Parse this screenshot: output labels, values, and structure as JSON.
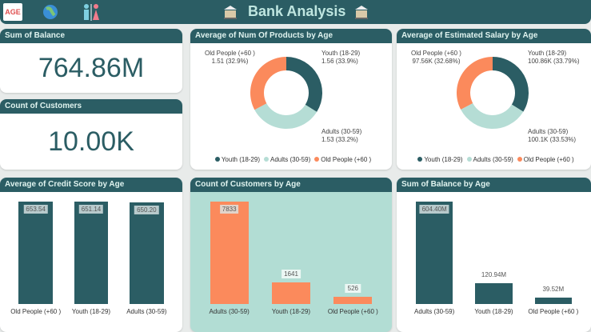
{
  "header": {
    "title": "Bank Analysis",
    "age_logo_text": "AGE"
  },
  "colors": {
    "youth": "#2b5d64",
    "adults": "#b5ddd5",
    "old": "#fb8a5c",
    "header": "#2b5d64"
  },
  "kpis": [
    {
      "title": "Sum of Balance",
      "value": "764.86M"
    },
    {
      "title": "Count of Customers",
      "value": "10.00K"
    }
  ],
  "chart_data": [
    {
      "type": "pie",
      "title": "Average of Num Of Products by Age",
      "categories": [
        "Youth (18-29)",
        "Adults (30-59)",
        "Old People (+60 )"
      ],
      "values": [
        1.56,
        1.53,
        1.51
      ],
      "percents": [
        33.9,
        33.2,
        32.9
      ],
      "labels": [
        "Youth (18-29)\n1.56 (33.9%)",
        "Adults (30-59)\n1.53 (33.2%)",
        "Old People (+60 )\n1.51 (32.9%)"
      ],
      "legend": [
        "Youth (18-29)",
        "Adults (30-59)",
        "Old People (+60 )"
      ]
    },
    {
      "type": "pie",
      "title": "Average of Estimated Salary by Age",
      "categories": [
        "Youth (18-29)",
        "Adults (30-59)",
        "Old People (+60 )"
      ],
      "values": [
        100860,
        100100,
        97560
      ],
      "percents": [
        33.79,
        33.53,
        32.68
      ],
      "labels": [
        "Youth (18-29)\n100.86K (33.79%)",
        "Adults (30-59)\n100.1K (33.53%)",
        "Old People (+60 )\n97.56K (32.68%)"
      ],
      "legend": [
        "Youth (18-29)",
        "Adults (30-59)",
        "Old People (+60 )"
      ]
    },
    {
      "type": "bar",
      "title": "Average of Credit Score by Age",
      "categories": [
        "Old People (+60 )",
        "Youth (18-29)",
        "Adults (30-59)"
      ],
      "values": [
        653.54,
        651.14,
        650.2
      ],
      "labels": [
        "653.54",
        "651.14",
        "650.20"
      ]
    },
    {
      "type": "bar",
      "title": "Count of Customers by Age",
      "categories": [
        "Adults (30-59)",
        "Youth (18-29)",
        "Old People (+60 )"
      ],
      "values": [
        7833,
        1641,
        526
      ],
      "labels": [
        "7833",
        "1641",
        "526"
      ]
    },
    {
      "type": "bar",
      "title": "Sum of Balance by Age",
      "categories": [
        "Adults (30-59)",
        "Youth (18-29)",
        "Old People (+60 )"
      ],
      "values": [
        604.4,
        120.94,
        39.52
      ],
      "labels": [
        "604.40M",
        "120.94M",
        "39.52M"
      ],
      "unit": "M"
    }
  ]
}
